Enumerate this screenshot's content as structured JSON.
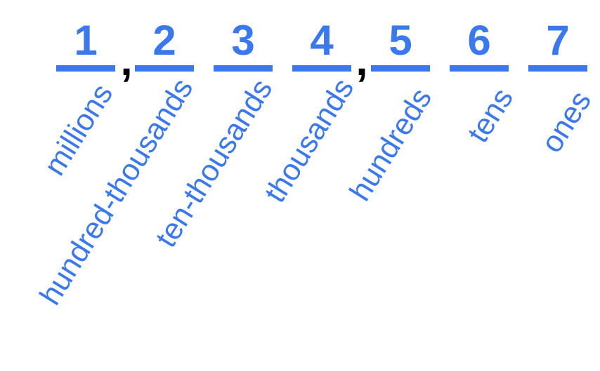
{
  "colors": {
    "digits": "#3b78ec",
    "lines": "#3b78ec",
    "labels": "#3b78ec",
    "commas": "#000000"
  },
  "places": [
    {
      "digit": "1",
      "label": "millions"
    },
    {
      "digit": "2",
      "label": "hundred-thousands"
    },
    {
      "digit": "3",
      "label": "ten-thousands"
    },
    {
      "digit": "4",
      "label": "thousands"
    },
    {
      "digit": "5",
      "label": "hundreds"
    },
    {
      "digit": "6",
      "label": "tens"
    },
    {
      "digit": "7",
      "label": "ones"
    }
  ],
  "separators": [
    ",",
    ","
  ]
}
